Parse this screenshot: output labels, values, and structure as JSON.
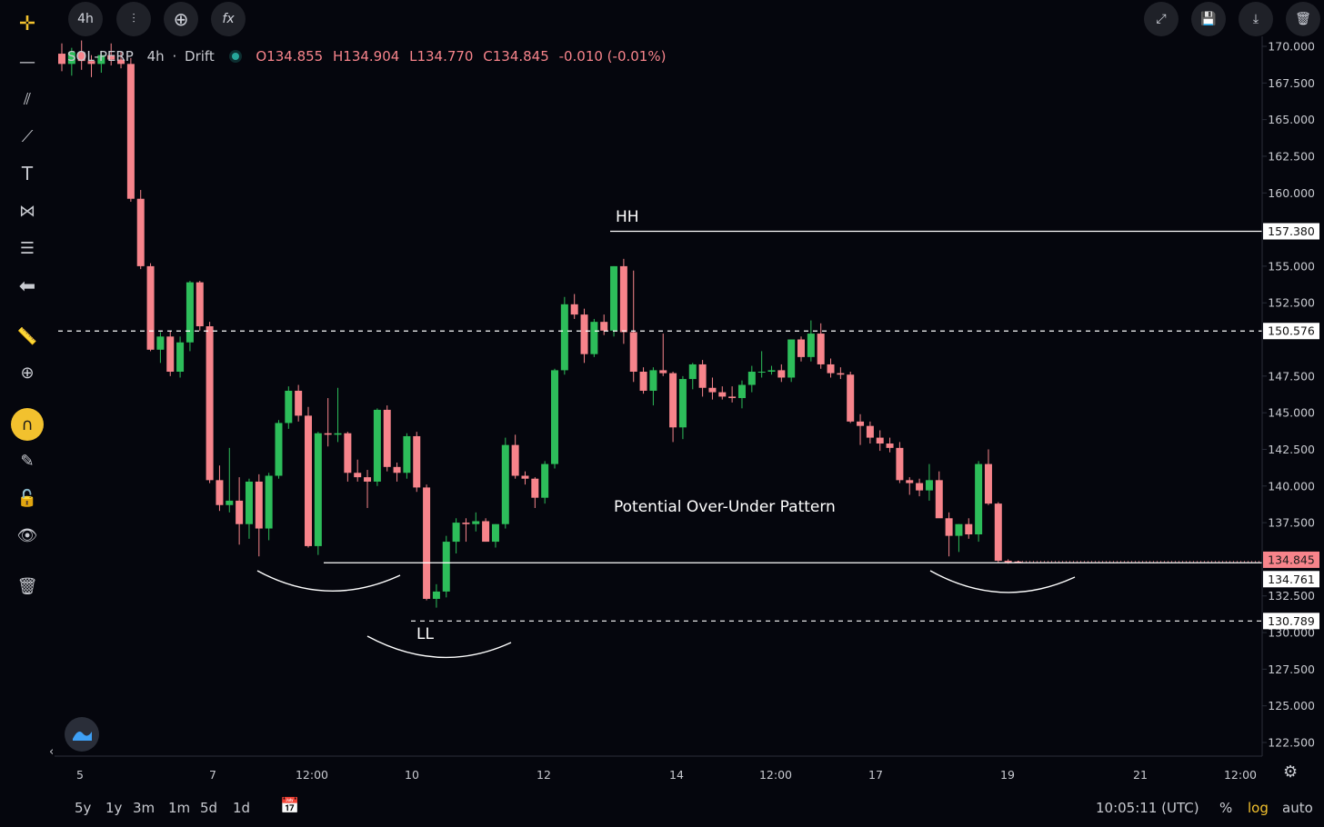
{
  "toolbar": {
    "interval": "4h",
    "icons": [
      "crosshair-icon",
      "line-icon",
      "channel-icon",
      "path-icon",
      "text-icon",
      "pattern-icon",
      "measure-lines-icon",
      "arrow-left-icon",
      "ruler-icon",
      "zoom-icon",
      "magnet-icon",
      "lock-draw-icon",
      "unlock-icon",
      "eye-icon",
      "trash-icon"
    ]
  },
  "top_right_icons": [
    "fullscreen-icon",
    "save-icon",
    "download-icon",
    "trash-icon"
  ],
  "legend": {
    "symbol": "SOL-PERP",
    "interval": "4h",
    "exchange": "Drift",
    "open": "O134.855",
    "high": "H134.904",
    "low": "L134.770",
    "close": "C134.845",
    "change": "-0.010 (-0.01%)"
  },
  "colors": {
    "up": "#26a69a",
    "up_fill": "#2dbd5a",
    "down": "#f7848b",
    "background": "#05060d"
  },
  "chart_data": {
    "type": "candlestick",
    "ylim": [
      121.0,
      171.0
    ],
    "yticks": [
      "170.000",
      "167.500",
      "165.000",
      "162.500",
      "160.000",
      "155.000",
      "152.500",
      "147.500",
      "145.000",
      "142.500",
      "140.000",
      "137.500",
      "132.500",
      "130.000",
      "127.500",
      "125.000",
      "122.500"
    ],
    "ytick_values": [
      170.0,
      167.5,
      165.0,
      162.5,
      160.0,
      155.0,
      152.5,
      147.5,
      145.0,
      142.5,
      140.0,
      137.5,
      132.5,
      130.0,
      127.5,
      125.0,
      122.5
    ],
    "xticks": [
      "5",
      "7",
      "12:00",
      "10",
      "12",
      "14",
      "12:00",
      "17",
      "19",
      "21",
      "12:00"
    ],
    "price_labels": [
      {
        "value": 157.38,
        "text": "157.380",
        "style": "light"
      },
      {
        "value": 150.576,
        "text": "150.576",
        "style": "light"
      },
      {
        "value": 134.845,
        "text": "134.845",
        "style": "current"
      },
      {
        "value": 134.761,
        "text": "134.761",
        "style": "light"
      },
      {
        "value": 130.789,
        "text": "130.789",
        "style": "light"
      }
    ],
    "annotations": {
      "hh_label": "HH",
      "ll_label": "LL",
      "pattern_label": "Potential Over-Under Pattern",
      "hh_level": 157.38,
      "neck_level": 150.576,
      "support_level": 134.761,
      "ll_level": 130.789
    },
    "candles": [
      [
        169.5,
        170.2,
        168.3,
        168.8
      ],
      [
        168.8,
        169.9,
        168.0,
        169.6
      ],
      [
        169.6,
        170.4,
        168.4,
        169.0
      ],
      [
        169.0,
        169.4,
        167.9,
        168.8
      ],
      [
        168.8,
        169.7,
        168.2,
        169.4
      ],
      [
        169.4,
        170.2,
        168.7,
        169.1
      ],
      [
        169.1,
        169.6,
        168.5,
        168.8
      ],
      [
        168.8,
        169.2,
        159.4,
        159.6
      ],
      [
        159.6,
        160.2,
        154.8,
        155.0
      ],
      [
        155.0,
        155.2,
        149.2,
        149.3
      ],
      [
        149.3,
        150.5,
        148.4,
        150.2
      ],
      [
        150.2,
        150.6,
        147.5,
        147.8
      ],
      [
        147.8,
        150.2,
        147.4,
        149.8
      ],
      [
        149.8,
        154.0,
        149.2,
        153.9
      ],
      [
        153.9,
        154.0,
        150.6,
        150.9
      ],
      [
        150.9,
        151.2,
        140.2,
        140.4
      ],
      [
        140.4,
        141.4,
        138.3,
        138.7
      ],
      [
        138.7,
        142.6,
        138.2,
        139.0
      ],
      [
        139.0,
        140.6,
        136.0,
        137.4
      ],
      [
        137.4,
        140.5,
        136.4,
        140.3
      ],
      [
        140.3,
        140.8,
        135.2,
        137.1
      ],
      [
        137.1,
        140.9,
        136.3,
        140.7
      ],
      [
        140.7,
        144.5,
        140.5,
        144.3
      ],
      [
        144.3,
        146.8,
        143.9,
        146.5
      ],
      [
        146.5,
        146.9,
        144.4,
        144.8
      ],
      [
        144.8,
        145.4,
        135.8,
        135.9
      ],
      [
        135.9,
        143.7,
        135.3,
        143.6
      ],
      [
        143.6,
        146.0,
        142.7,
        143.5
      ],
      [
        143.5,
        146.7,
        143.0,
        143.6
      ],
      [
        143.6,
        143.7,
        140.3,
        140.9
      ],
      [
        140.9,
        141.8,
        140.3,
        140.6
      ],
      [
        140.6,
        141.1,
        138.5,
        140.3
      ],
      [
        140.3,
        145.3,
        140.0,
        145.2
      ],
      [
        145.2,
        145.5,
        141.0,
        141.3
      ],
      [
        141.3,
        141.6,
        140.3,
        140.9
      ],
      [
        140.9,
        143.6,
        140.5,
        143.4
      ],
      [
        143.4,
        143.7,
        139.6,
        139.9
      ],
      [
        139.9,
        140.1,
        132.2,
        132.3
      ],
      [
        132.3,
        133.3,
        131.7,
        132.8
      ],
      [
        132.8,
        136.6,
        132.4,
        136.2
      ],
      [
        136.2,
        137.8,
        135.4,
        137.5
      ],
      [
        137.5,
        137.8,
        136.2,
        137.4
      ],
      [
        137.4,
        138.2,
        136.9,
        137.6
      ],
      [
        137.6,
        137.8,
        136.2,
        136.2
      ],
      [
        136.2,
        137.4,
        135.8,
        137.4
      ],
      [
        137.4,
        143.3,
        137.1,
        142.8
      ],
      [
        142.8,
        143.5,
        140.5,
        140.7
      ],
      [
        140.7,
        141.0,
        140.1,
        140.5
      ],
      [
        140.5,
        140.6,
        138.5,
        139.2
      ],
      [
        139.2,
        141.7,
        138.8,
        141.5
      ],
      [
        141.5,
        148.0,
        141.2,
        147.9
      ],
      [
        147.9,
        152.9,
        147.6,
        152.4
      ],
      [
        152.4,
        153.1,
        151.4,
        151.7
      ],
      [
        151.7,
        152.1,
        148.4,
        149.0
      ],
      [
        149.0,
        151.4,
        148.8,
        151.2
      ],
      [
        151.2,
        151.7,
        150.3,
        150.6
      ],
      [
        150.6,
        155.0,
        150.2,
        155.0
      ],
      [
        155.0,
        155.5,
        149.7,
        150.5
      ],
      [
        150.5,
        154.7,
        147.1,
        147.8
      ],
      [
        147.8,
        148.1,
        146.3,
        146.5
      ],
      [
        146.5,
        148.1,
        145.5,
        147.9
      ],
      [
        147.9,
        150.4,
        147.5,
        147.7
      ],
      [
        147.7,
        147.8,
        143.0,
        144.0
      ],
      [
        144.0,
        147.5,
        143.2,
        147.3
      ],
      [
        147.3,
        148.4,
        146.6,
        148.3
      ],
      [
        148.3,
        148.6,
        146.1,
        146.7
      ],
      [
        146.7,
        147.4,
        145.9,
        146.4
      ],
      [
        146.4,
        146.8,
        145.9,
        146.1
      ],
      [
        146.1,
        146.8,
        145.7,
        146.0
      ],
      [
        146.0,
        147.2,
        145.3,
        146.9
      ],
      [
        146.9,
        148.2,
        146.4,
        147.8
      ],
      [
        147.8,
        149.2,
        147.4,
        147.8
      ],
      [
        147.8,
        148.2,
        147.6,
        147.9
      ],
      [
        147.9,
        148.3,
        147.1,
        147.4
      ],
      [
        147.4,
        149.9,
        147.1,
        150.0
      ],
      [
        150.0,
        150.2,
        148.5,
        148.8
      ],
      [
        148.8,
        151.3,
        148.5,
        150.4
      ],
      [
        150.4,
        151.1,
        148.0,
        148.3
      ],
      [
        148.3,
        148.7,
        147.4,
        147.7
      ],
      [
        147.7,
        148.1,
        147.3,
        147.6
      ],
      [
        147.6,
        147.8,
        144.3,
        144.4
      ],
      [
        144.4,
        144.9,
        142.8,
        144.1
      ],
      [
        144.1,
        144.4,
        142.9,
        143.3
      ],
      [
        143.3,
        143.8,
        142.4,
        142.9
      ],
      [
        142.9,
        143.3,
        142.3,
        142.6
      ],
      [
        142.6,
        143.0,
        140.2,
        140.4
      ],
      [
        140.4,
        140.6,
        139.4,
        140.2
      ],
      [
        140.2,
        140.5,
        139.3,
        139.7
      ],
      [
        139.7,
        141.5,
        139.0,
        140.4
      ],
      [
        140.4,
        141.0,
        138.1,
        137.8
      ],
      [
        137.8,
        138.2,
        135.2,
        136.6
      ],
      [
        136.6,
        137.4,
        135.5,
        137.4
      ],
      [
        137.4,
        137.8,
        136.4,
        136.7
      ],
      [
        136.7,
        141.7,
        136.2,
        141.5
      ],
      [
        141.5,
        142.5,
        138.7,
        138.8
      ],
      [
        138.8,
        138.9,
        134.8,
        134.9
      ],
      [
        134.9,
        135.0,
        134.7,
        134.8
      ],
      [
        134.85,
        134.9,
        134.77,
        134.845
      ]
    ]
  },
  "bottom_bar": {
    "ranges": [
      "5y",
      "1y",
      "3m",
      "1m",
      "5d",
      "1d"
    ],
    "clock": "10:05:11 (UTC)",
    "options": [
      "%",
      "log",
      "auto"
    ]
  }
}
